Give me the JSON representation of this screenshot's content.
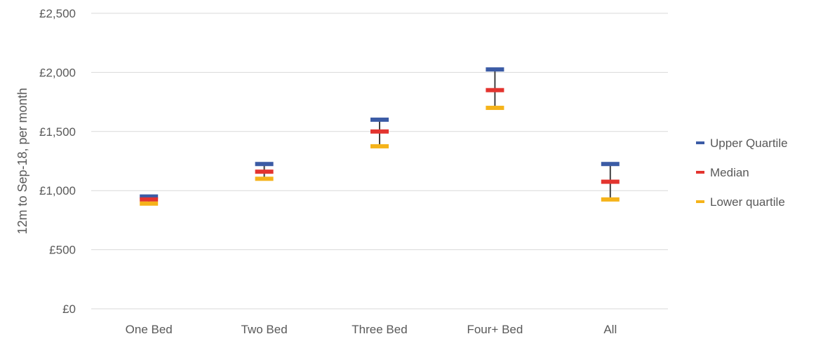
{
  "chart_data": {
    "type": "stock-hilo",
    "categories": [
      "One Bed",
      "Two Bed",
      "Three Bed",
      "Four+ Bed",
      "All"
    ],
    "series": [
      {
        "name": "Upper Quartile",
        "color": "#3B5BA5",
        "values": [
          950,
          1225,
          1600,
          2025,
          1225
        ]
      },
      {
        "name": "Median",
        "color": "#E3342F",
        "values": [
          925,
          1160,
          1500,
          1850,
          1075
        ]
      },
      {
        "name": "Lower quartile",
        "color": "#F5B31A",
        "values": [
          890,
          1100,
          1375,
          1700,
          925
        ]
      }
    ],
    "ylabel": "12m to Sep-18, per month",
    "yticks": [
      "£0",
      "£500",
      "£1,000",
      "£1,500",
      "£2,000",
      "£2,500"
    ],
    "ytick_values": [
      0,
      500,
      1000,
      1500,
      2000,
      2500
    ],
    "ylim": [
      0,
      2500
    ],
    "grid": true,
    "legend_position": "right",
    "hilo_line_color": "#404040",
    "gridline_color": "#D9D9D9"
  }
}
